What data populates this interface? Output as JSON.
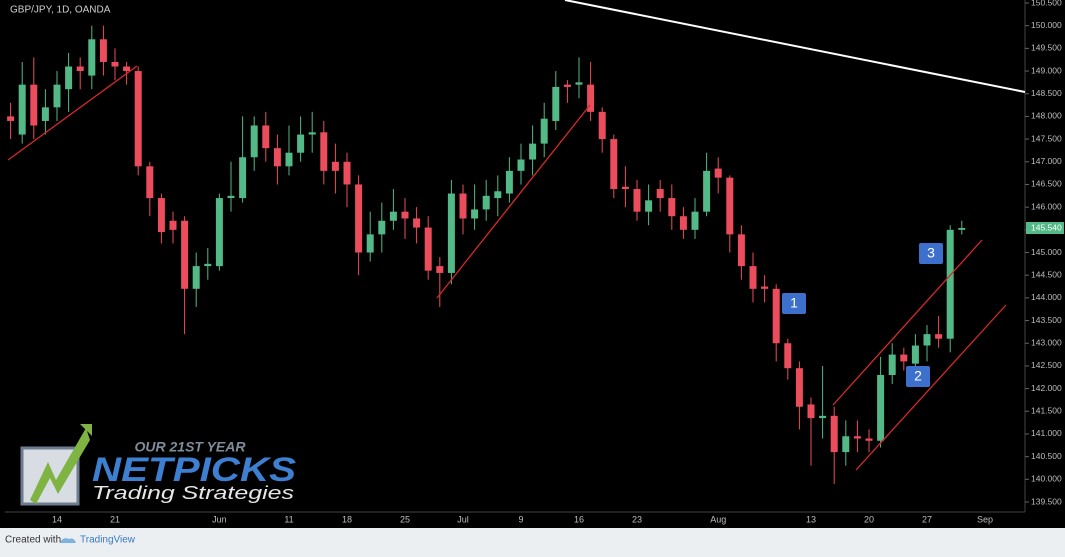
{
  "chart_data": {
    "type": "candlestick",
    "title": "GBP/JPY, 1D, OANDA",
    "categories": [
      null,
      null,
      null,
      null,
      "14",
      null,
      null,
      null,
      null,
      "21",
      null,
      null,
      null,
      null,
      null,
      null,
      null,
      null,
      "Jun",
      null,
      null,
      null,
      null,
      null,
      "11",
      null,
      null,
      null,
      null,
      "18",
      null,
      null,
      null,
      null,
      "25",
      null,
      null,
      null,
      null,
      "Jul",
      null,
      null,
      null,
      null,
      "9",
      null,
      null,
      null,
      null,
      "16",
      null,
      null,
      null,
      null,
      "23",
      null,
      null,
      null,
      null,
      null,
      null,
      "Aug",
      null,
      null,
      null,
      null,
      null,
      null,
      null,
      "13",
      null,
      null,
      null,
      null,
      "20",
      null,
      null,
      null,
      null,
      "27",
      null,
      null,
      null,
      null,
      "Sep"
    ],
    "open": [
      148.0,
      147.6,
      148.7,
      147.9,
      148.2,
      148.6,
      149.1,
      148.9,
      149.7,
      149.2,
      149.1,
      149.0,
      146.9,
      146.2,
      145.7,
      145.7,
      144.2,
      144.7,
      144.7,
      146.2,
      146.2,
      147.1,
      147.8,
      147.3,
      146.9,
      147.2,
      147.6,
      147.65,
      147.0,
      147.0,
      146.5,
      145.0,
      145.4,
      145.7,
      145.9,
      145.75,
      145.55,
      144.7,
      144.55,
      146.3,
      145.75,
      145.95,
      146.2,
      146.3,
      146.8,
      147.05,
      147.4,
      147.9,
      148.7,
      148.7,
      148.7,
      148.1,
      147.5,
      146.45,
      146.4,
      145.9,
      146.4,
      146.2,
      145.8,
      145.5,
      145.9,
      146.85,
      146.65,
      145.4,
      144.7,
      144.25,
      144.2,
      143.0,
      142.45,
      141.65,
      141.35,
      141.4,
      140.6,
      140.95,
      140.9,
      140.85,
      142.3,
      142.75,
      142.55,
      142.95,
      143.2,
      143.1,
      145.5,
      null,
      null
    ],
    "high": [
      148.3,
      149.2,
      149.3,
      148.6,
      149.0,
      149.4,
      149.3,
      150.0,
      150.0,
      149.5,
      149.2,
      149.1,
      147.0,
      146.3,
      145.9,
      145.8,
      145.0,
      145.1,
      146.3,
      147.0,
      148.0,
      148.0,
      148.1,
      147.6,
      147.8,
      148.0,
      148.1,
      147.9,
      147.4,
      147.2,
      146.7,
      145.9,
      146.1,
      146.4,
      146.2,
      146.0,
      145.8,
      144.9,
      146.6,
      146.5,
      146.5,
      146.6,
      146.7,
      147.1,
      147.4,
      147.8,
      148.3,
      149.0,
      148.8,
      149.3,
      149.2,
      148.2,
      147.6,
      146.9,
      146.6,
      146.5,
      146.6,
      146.5,
      146.0,
      146.2,
      147.2,
      147.1,
      146.7,
      145.6,
      145.0,
      144.5,
      144.3,
      143.1,
      142.6,
      141.8,
      142.5,
      141.6,
      141.3,
      141.3,
      141.1,
      142.7,
      143.0,
      142.9,
      143.2,
      143.4,
      143.6,
      145.6,
      145.7,
      null,
      null
    ],
    "low": [
      147.5,
      147.4,
      147.5,
      147.6,
      147.9,
      148.1,
      148.6,
      148.6,
      148.9,
      148.8,
      148.7,
      146.7,
      145.8,
      145.2,
      145.2,
      143.2,
      143.8,
      144.4,
      144.6,
      145.9,
      146.1,
      146.8,
      147.0,
      146.5,
      146.7,
      147.0,
      147.2,
      146.5,
      146.3,
      146.0,
      144.5,
      144.8,
      145.0,
      145.5,
      145.3,
      145.2,
      144.4,
      143.8,
      144.3,
      145.4,
      145.5,
      145.7,
      145.8,
      146.1,
      146.5,
      146.7,
      147.1,
      147.7,
      148.3,
      148.4,
      147.9,
      147.2,
      146.2,
      146.0,
      145.7,
      145.6,
      145.9,
      145.5,
      145.3,
      145.3,
      145.8,
      146.3,
      145.0,
      144.4,
      143.9,
      143.9,
      142.6,
      142.2,
      141.1,
      140.3,
      140.9,
      139.9,
      140.3,
      140.6,
      140.6,
      140.7,
      142.1,
      142.4,
      142.3,
      142.6,
      142.9,
      142.8,
      145.4,
      null,
      null
    ],
    "close": [
      147.9,
      148.7,
      147.8,
      148.2,
      148.7,
      149.1,
      149.0,
      149.7,
      149.2,
      149.1,
      149.0,
      146.9,
      146.2,
      145.45,
      145.5,
      144.2,
      144.7,
      144.75,
      146.2,
      146.25,
      147.1,
      147.8,
      147.3,
      146.9,
      147.2,
      147.6,
      147.65,
      146.8,
      146.8,
      146.5,
      145.0,
      145.4,
      145.7,
      145.9,
      145.75,
      145.55,
      144.6,
      144.55,
      146.3,
      145.75,
      145.95,
      146.25,
      146.35,
      146.8,
      147.05,
      147.4,
      147.95,
      148.65,
      148.65,
      148.75,
      148.1,
      147.5,
      146.4,
      146.4,
      145.9,
      146.15,
      146.2,
      145.8,
      145.5,
      145.9,
      146.8,
      146.65,
      145.4,
      144.7,
      144.2,
      144.2,
      143.0,
      142.45,
      141.6,
      141.35,
      141.4,
      140.6,
      140.95,
      140.9,
      140.85,
      142.3,
      142.75,
      142.6,
      142.95,
      143.2,
      143.1,
      145.5,
      145.54,
      null,
      null
    ],
    "up_color": "#53b987",
    "down_color": "#eb4d5c",
    "ylim": [
      139.28,
      150.566
    ],
    "yticks": [
      {
        "value": 139.5,
        "label": "139.500"
      },
      {
        "value": 140,
        "label": "140.000"
      },
      {
        "value": 140.5,
        "label": "140.500"
      },
      {
        "value": 141,
        "label": "141.000"
      },
      {
        "value": 141.5,
        "label": "141.500"
      },
      {
        "value": 142,
        "label": "142.000"
      },
      {
        "value": 142.5,
        "label": "142.500"
      },
      {
        "value": 143,
        "label": "143.000"
      },
      {
        "value": 143.5,
        "label": "143.500"
      },
      {
        "value": 144,
        "label": "144.000"
      },
      {
        "value": 144.5,
        "label": "144.500"
      },
      {
        "value": 145,
        "label": "145.000"
      },
      {
        "value": 145.5,
        "label": "145.500"
      },
      {
        "value": 146,
        "label": "146.000"
      },
      {
        "value": 146.5,
        "label": "146.500"
      },
      {
        "value": 147,
        "label": "147.000"
      },
      {
        "value": 147.5,
        "label": "147.500"
      },
      {
        "value": 148,
        "label": "148.000"
      },
      {
        "value": 148.5,
        "label": "148.500"
      },
      {
        "value": 149,
        "label": "149.000"
      },
      {
        "value": 149.5,
        "label": "149.500"
      },
      {
        "value": 150,
        "label": "150.000"
      },
      {
        "value": 150.5,
        "label": "150.500"
      }
    ],
    "last_price": 145.54,
    "last_price_label": "145.540",
    "grid": false,
    "annotations": [
      "1",
      "2",
      "3"
    ]
  },
  "watermark": {
    "badge": "OUR 21ST YEAR",
    "brand": "NETPICKS",
    "tagline": "Trading Strategies"
  },
  "footer": {
    "created": "Created with",
    "tool": "TradingView"
  }
}
